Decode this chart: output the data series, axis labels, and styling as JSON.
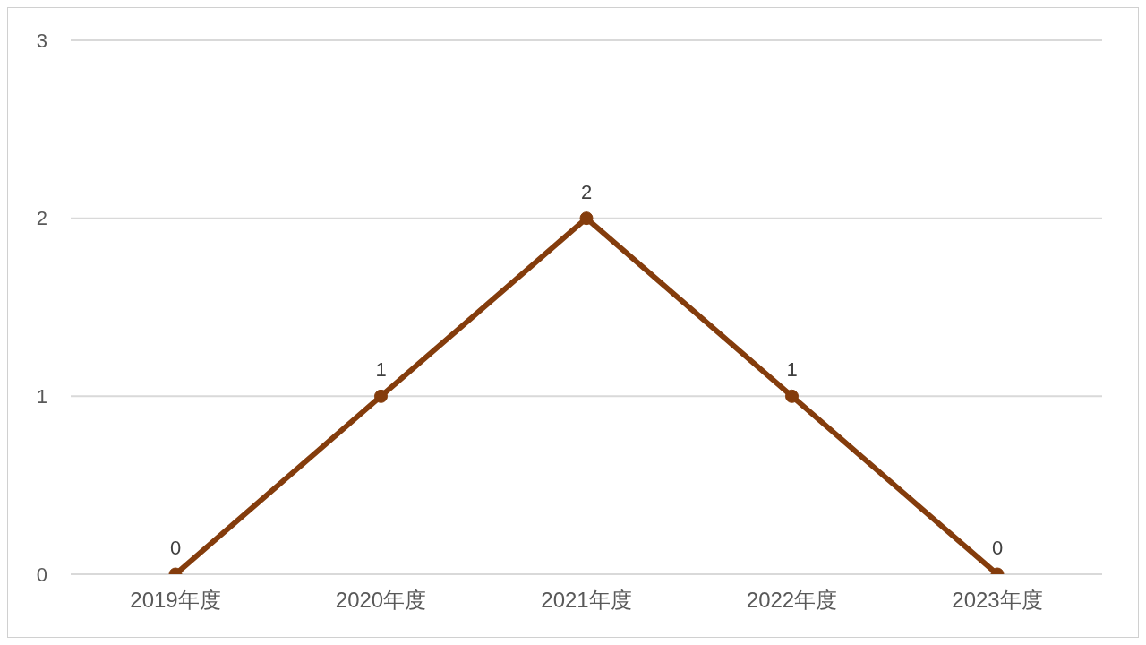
{
  "chart_data": {
    "type": "line",
    "categories": [
      "2019年度",
      "2020年度",
      "2021年度",
      "2022年度",
      "2023年度"
    ],
    "series": [
      {
        "color": "#843c0c",
        "values": [
          0,
          1,
          2,
          1,
          0
        ]
      }
    ],
    "ylim": [
      0,
      3
    ],
    "yticks": [
      0,
      1,
      2,
      3
    ],
    "grid": "y",
    "data_labels": true,
    "marker": "circle",
    "line_style": "solid",
    "legend": false
  }
}
